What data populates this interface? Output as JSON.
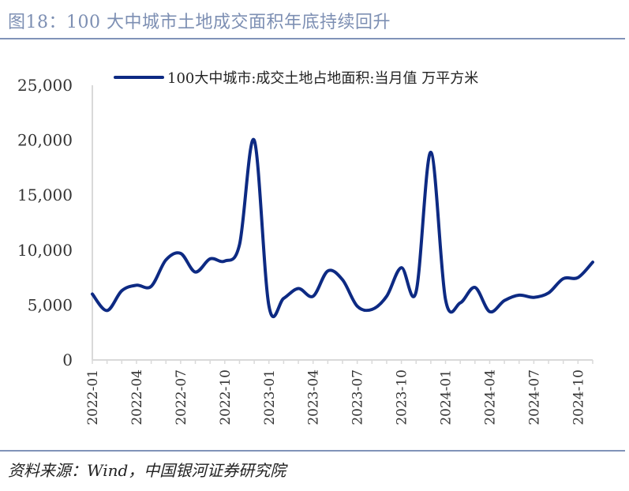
{
  "figure": {
    "title": "图18：100 大中城市土地成交面积年底持续回升",
    "source": "资料来源：Wind，中国银河证券研究院"
  },
  "chart_data": {
    "type": "line",
    "legend": "top-center",
    "grid": false,
    "ylim": [
      0,
      25000
    ],
    "yticks": [
      "0",
      "5,000",
      "10,000",
      "15,000",
      "20,000",
      "25,000"
    ],
    "ytick_values": [
      0,
      5000,
      10000,
      15000,
      20000,
      25000
    ],
    "x": [
      "2022-01",
      "2022-02",
      "2022-03",
      "2022-04",
      "2022-05",
      "2022-06",
      "2022-07",
      "2022-08",
      "2022-09",
      "2022-10",
      "2022-11",
      "2022-12",
      "2023-01",
      "2023-02",
      "2023-03",
      "2023-04",
      "2023-05",
      "2023-06",
      "2023-07",
      "2023-08",
      "2023-09",
      "2023-10",
      "2023-11",
      "2023-12",
      "2024-01",
      "2024-02",
      "2024-03",
      "2024-04",
      "2024-05",
      "2024-06",
      "2024-07",
      "2024-08",
      "2024-09",
      "2024-10",
      "2024-11"
    ],
    "xticks": [
      "2022-01",
      "2022-04",
      "2022-07",
      "2022-10",
      "2023-01",
      "2023-04",
      "2023-07",
      "2023-10",
      "2024-01",
      "2024-04",
      "2024-07",
      "2024-10"
    ],
    "series": [
      {
        "name": "100大中城市:成交土地占地面积:当月值 万平方米",
        "color": "#0d2a83",
        "values": [
          6000,
          4500,
          6300,
          6800,
          6700,
          9100,
          9700,
          8000,
          9200,
          9000,
          10500,
          20000,
          4900,
          5600,
          6500,
          5800,
          8100,
          7300,
          4900,
          4600,
          5800,
          8400,
          6200,
          18900,
          5500,
          5200,
          6600,
          4400,
          5400,
          5900,
          5700,
          6100,
          7400,
          7500,
          8900
        ]
      }
    ]
  }
}
